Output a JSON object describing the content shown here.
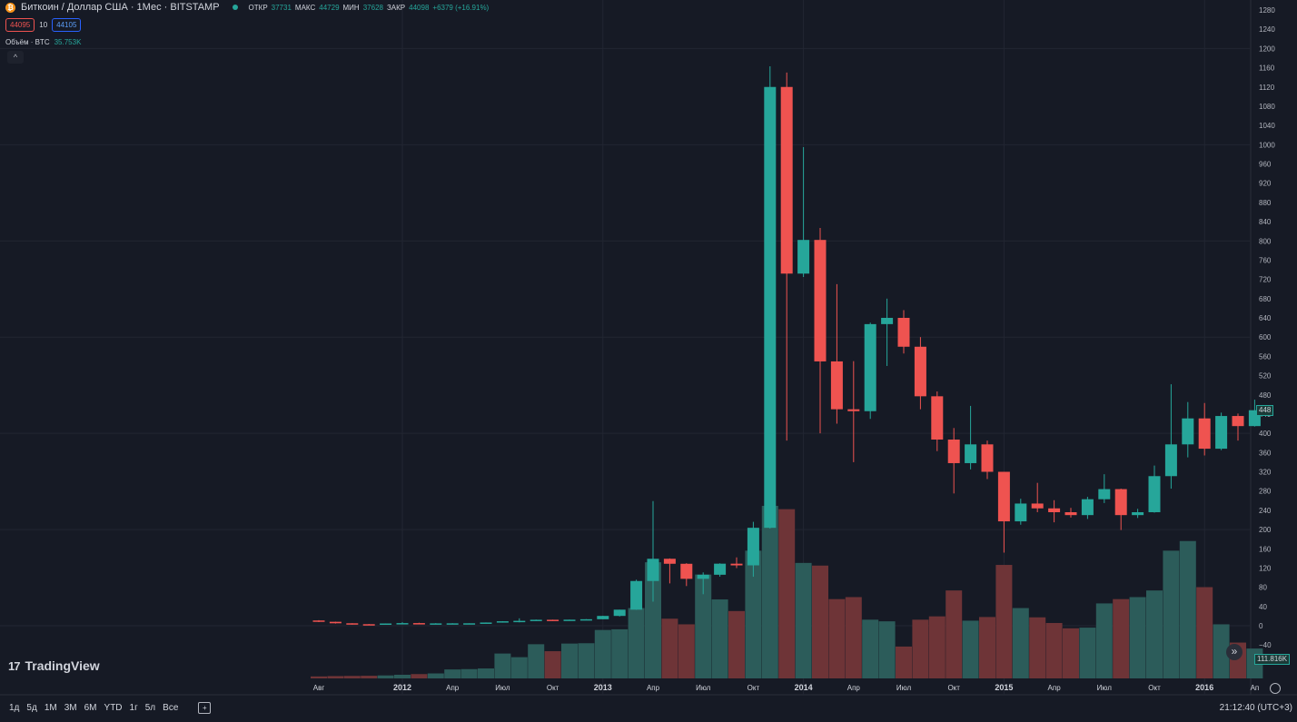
{
  "header": {
    "logo_glyph": "₿",
    "title": "Биткоин / Доллар США · 1Мес · BITSTAMP",
    "ohlc": [
      {
        "label": "ОТКР",
        "value": "37731"
      },
      {
        "label": "МАКС",
        "value": "44729"
      },
      {
        "label": "МИН",
        "value": "37628"
      },
      {
        "label": "ЗАКР",
        "value": "44098"
      }
    ],
    "change": "+6379 (+16.91%)",
    "sell_price": "44095",
    "spread": "10",
    "buy_price": "44105"
  },
  "volume_legend": {
    "label": "Объём · BTC",
    "value": "35.753K"
  },
  "collapse_glyph": "^",
  "logo_text": "TradingView",
  "logo_mark": "17",
  "ranges": [
    "1д",
    "5д",
    "1М",
    "3М",
    "6М",
    "YTD",
    "1г",
    "5л",
    "Все"
  ],
  "clock": "21:12:40 (UTC+3)",
  "scroll_glyph": "»",
  "price_tag": "448",
  "volume_tag": "111.816K",
  "colors": {
    "up": "#26a69a",
    "down": "#ef5350",
    "vol_up": "#2c5c5a",
    "vol_down": "#6e3437",
    "background": "#161a25",
    "grid": "#222632",
    "axis_text": "#b2b5be"
  },
  "chart_data": {
    "type": "candlestick",
    "symbol": "BTCUSD",
    "interval": "1M",
    "exchange": "BITSTAMP",
    "y_ticks": [
      1280,
      1240,
      1200,
      1160,
      1120,
      1080,
      1040,
      1000,
      960,
      920,
      880,
      840,
      800,
      760,
      720,
      680,
      640,
      600,
      560,
      520,
      480,
      440,
      400,
      360,
      320,
      280,
      240,
      200,
      160,
      120,
      80,
      40,
      0,
      -40
    ],
    "y_tick_labels": [
      "1280",
      "1240",
      "1200",
      "1160",
      "1120",
      "1080",
      "1040",
      "1000",
      "960",
      "920",
      "880",
      "840",
      "800",
      "760",
      "720",
      "680",
      "640",
      "600",
      "560",
      "520",
      "480",
      "440",
      "400",
      "360",
      "320",
      "280",
      "240",
      "200",
      "160",
      "120",
      "80",
      "40",
      "0",
      "−40"
    ],
    "ylim": [
      -55,
      1300
    ],
    "x_labels": [
      {
        "at": "2011-08",
        "label": "Авг",
        "bold": false
      },
      {
        "at": "2012-01",
        "label": "2012",
        "bold": true
      },
      {
        "at": "2012-04",
        "label": "Апр",
        "bold": false
      },
      {
        "at": "2012-07",
        "label": "Июл",
        "bold": false
      },
      {
        "at": "2012-10",
        "label": "Окт",
        "bold": false
      },
      {
        "at": "2013-01",
        "label": "2013",
        "bold": true
      },
      {
        "at": "2013-04",
        "label": "Апр",
        "bold": false
      },
      {
        "at": "2013-07",
        "label": "Июл",
        "bold": false
      },
      {
        "at": "2013-10",
        "label": "Окт",
        "bold": false
      },
      {
        "at": "2014-01",
        "label": "2014",
        "bold": true
      },
      {
        "at": "2014-04",
        "label": "Апр",
        "bold": false
      },
      {
        "at": "2014-07",
        "label": "Июл",
        "bold": false
      },
      {
        "at": "2014-10",
        "label": "Окт",
        "bold": false
      },
      {
        "at": "2015-01",
        "label": "2015",
        "bold": true
      },
      {
        "at": "2015-04",
        "label": "Апр",
        "bold": false
      },
      {
        "at": "2015-07",
        "label": "Июл",
        "bold": false
      },
      {
        "at": "2015-10",
        "label": "Окт",
        "bold": false
      },
      {
        "at": "2016-01",
        "label": "2016",
        "bold": true
      },
      {
        "at": "2016-04",
        "label": "Ап",
        "bold": false
      }
    ],
    "candles": [
      {
        "t": "2011-08",
        "o": 10.9,
        "h": 11.5,
        "l": 7.5,
        "c": 8.2,
        "v": 600
      },
      {
        "t": "2011-09",
        "o": 8.2,
        "h": 8.5,
        "l": 4.5,
        "c": 5.1,
        "v": 700
      },
      {
        "t": "2011-10",
        "o": 5.1,
        "h": 5.2,
        "l": 2.3,
        "c": 3.2,
        "v": 750
      },
      {
        "t": "2011-11",
        "o": 3.2,
        "h": 3.6,
        "l": 2.0,
        "c": 3.0,
        "v": 800
      },
      {
        "t": "2011-12",
        "o": 3.0,
        "h": 4.8,
        "l": 2.8,
        "c": 4.7,
        "v": 900
      },
      {
        "t": "2012-01",
        "o": 4.7,
        "h": 7.2,
        "l": 4.6,
        "c": 5.5,
        "v": 1100
      },
      {
        "t": "2012-02",
        "o": 5.5,
        "h": 6.2,
        "l": 4.2,
        "c": 4.9,
        "v": 1300
      },
      {
        "t": "2012-03",
        "o": 4.9,
        "h": 5.4,
        "l": 4.7,
        "c": 4.9,
        "v": 1500
      },
      {
        "t": "2012-04",
        "o": 4.9,
        "h": 5.3,
        "l": 4.7,
        "c": 5.0,
        "v": 2700
      },
      {
        "t": "2012-05",
        "o": 5.0,
        "h": 5.2,
        "l": 4.9,
        "c": 5.1,
        "v": 2800
      },
      {
        "t": "2012-06",
        "o": 5.1,
        "h": 6.8,
        "l": 5.1,
        "c": 6.7,
        "v": 3000
      },
      {
        "t": "2012-07",
        "o": 6.7,
        "h": 9.5,
        "l": 6.5,
        "c": 9.3,
        "v": 7500
      },
      {
        "t": "2012-08",
        "o": 9.3,
        "h": 15.4,
        "l": 7.0,
        "c": 10.2,
        "v": 6400
      },
      {
        "t": "2012-09",
        "o": 10.2,
        "h": 12.8,
        "l": 10.1,
        "c": 12.4,
        "v": 10300
      },
      {
        "t": "2012-10",
        "o": 12.4,
        "h": 12.6,
        "l": 10.2,
        "c": 11.2,
        "v": 8200
      },
      {
        "t": "2012-11",
        "o": 11.2,
        "h": 12.8,
        "l": 10.7,
        "c": 12.6,
        "v": 10500
      },
      {
        "t": "2012-12",
        "o": 12.6,
        "h": 13.7,
        "l": 12.5,
        "c": 13.5,
        "v": 10600
      },
      {
        "t": "2013-01",
        "o": 13.5,
        "h": 20.8,
        "l": 13.3,
        "c": 20.4,
        "v": 14600
      },
      {
        "t": "2013-02",
        "o": 20.4,
        "h": 33.4,
        "l": 19.3,
        "c": 33.4,
        "v": 14800
      },
      {
        "t": "2013-03",
        "o": 33.4,
        "h": 95.7,
        "l": 33.0,
        "c": 93.0,
        "v": 21200
      },
      {
        "t": "2013-04",
        "o": 93.0,
        "h": 259.0,
        "l": 50.0,
        "c": 139.2,
        "v": 35000
      },
      {
        "t": "2013-05",
        "o": 139.2,
        "h": 140.0,
        "l": 88.0,
        "c": 128.8,
        "v": 18000
      },
      {
        "t": "2013-06",
        "o": 128.8,
        "h": 130.0,
        "l": 82.5,
        "c": 97.5,
        "v": 16300
      },
      {
        "t": "2013-07",
        "o": 97.5,
        "h": 110.9,
        "l": 65.5,
        "c": 106.0,
        "v": 31300
      },
      {
        "t": "2013-08",
        "o": 106.0,
        "h": 129.8,
        "l": 102.0,
        "c": 129.0,
        "v": 23800
      },
      {
        "t": "2013-09",
        "o": 129.0,
        "h": 142.0,
        "l": 120.0,
        "c": 125.5,
        "v": 20300
      },
      {
        "t": "2013-10",
        "o": 125.5,
        "h": 216.0,
        "l": 101.8,
        "c": 203.6,
        "v": 38500
      },
      {
        "t": "2013-11",
        "o": 203.6,
        "h": 1163.0,
        "l": 202.0,
        "c": 1120.0,
        "v": 52000
      },
      {
        "t": "2013-12",
        "o": 1120.0,
        "h": 1150.0,
        "l": 385.0,
        "c": 732.0,
        "v": 51000
      },
      {
        "t": "2014-01",
        "o": 732.0,
        "h": 995.0,
        "l": 725.0,
        "c": 802.0,
        "v": 34800
      },
      {
        "t": "2014-02",
        "o": 802.0,
        "h": 827.0,
        "l": 400.0,
        "c": 549.5,
        "v": 34000
      },
      {
        "t": "2014-03",
        "o": 549.5,
        "h": 710.0,
        "l": 420.0,
        "c": 450.0,
        "v": 23900
      },
      {
        "t": "2014-04",
        "o": 450.0,
        "h": 550.0,
        "l": 340.0,
        "c": 446.0,
        "v": 24500
      },
      {
        "t": "2014-05",
        "o": 446.0,
        "h": 630.0,
        "l": 430.0,
        "c": 627.0,
        "v": 17700
      },
      {
        "t": "2014-06",
        "o": 627.0,
        "h": 680.0,
        "l": 540.0,
        "c": 640.0,
        "v": 17200
      },
      {
        "t": "2014-07",
        "o": 640.0,
        "h": 656.0,
        "l": 566.0,
        "c": 580.0,
        "v": 9600
      },
      {
        "t": "2014-08",
        "o": 580.0,
        "h": 600.0,
        "l": 450.0,
        "c": 477.0,
        "v": 17700
      },
      {
        "t": "2014-09",
        "o": 477.0,
        "h": 487.0,
        "l": 363.0,
        "c": 387.0,
        "v": 18700
      },
      {
        "t": "2014-10",
        "o": 387.0,
        "h": 411.0,
        "l": 275.0,
        "c": 338.0,
        "v": 26500
      },
      {
        "t": "2014-11",
        "o": 338.0,
        "h": 457.0,
        "l": 325.0,
        "c": 377.0,
        "v": 17400
      },
      {
        "t": "2014-12",
        "o": 377.0,
        "h": 385.0,
        "l": 305.0,
        "c": 320.0,
        "v": 18500
      },
      {
        "t": "2015-01",
        "o": 320.0,
        "h": 320.0,
        "l": 152.0,
        "c": 217.0,
        "v": 34200
      },
      {
        "t": "2015-02",
        "o": 217.0,
        "h": 264.0,
        "l": 210.0,
        "c": 254.0,
        "v": 21200
      },
      {
        "t": "2015-03",
        "o": 254.0,
        "h": 297.0,
        "l": 236.0,
        "c": 244.0,
        "v": 18400
      },
      {
        "t": "2015-04",
        "o": 244.0,
        "h": 261.0,
        "l": 215.0,
        "c": 236.0,
        "v": 16700
      },
      {
        "t": "2015-05",
        "o": 236.0,
        "h": 245.0,
        "l": 225.0,
        "c": 230.0,
        "v": 15100
      },
      {
        "t": "2015-06",
        "o": 230.0,
        "h": 268.0,
        "l": 222.0,
        "c": 263.0,
        "v": 15300
      },
      {
        "t": "2015-07",
        "o": 263.0,
        "h": 315.0,
        "l": 255.0,
        "c": 284.0,
        "v": 22600
      },
      {
        "t": "2015-08",
        "o": 284.0,
        "h": 285.0,
        "l": 199.0,
        "c": 230.0,
        "v": 23900
      },
      {
        "t": "2015-09",
        "o": 230.0,
        "h": 243.0,
        "l": 224.0,
        "c": 236.0,
        "v": 24500
      },
      {
        "t": "2015-10",
        "o": 236.0,
        "h": 333.0,
        "l": 235.0,
        "c": 311.0,
        "v": 26500
      },
      {
        "t": "2015-11",
        "o": 311.0,
        "h": 502.0,
        "l": 285.0,
        "c": 377.0,
        "v": 38500
      },
      {
        "t": "2015-12",
        "o": 377.0,
        "h": 465.0,
        "l": 350.0,
        "c": 431.0,
        "v": 41400
      },
      {
        "t": "2016-01",
        "o": 431.0,
        "h": 463.0,
        "l": 354.0,
        "c": 368.0,
        "v": 27500
      },
      {
        "t": "2016-02",
        "o": 368.0,
        "h": 443.0,
        "l": 365.0,
        "c": 436.0,
        "v": 16300
      },
      {
        "t": "2016-03",
        "o": 436.0,
        "h": 441.0,
        "l": 385.0,
        "c": 415.0,
        "v": 10800
      },
      {
        "t": "2016-04",
        "o": 415.0,
        "h": 470.0,
        "l": 414.0,
        "c": 448.0,
        "v": 9000
      }
    ]
  }
}
